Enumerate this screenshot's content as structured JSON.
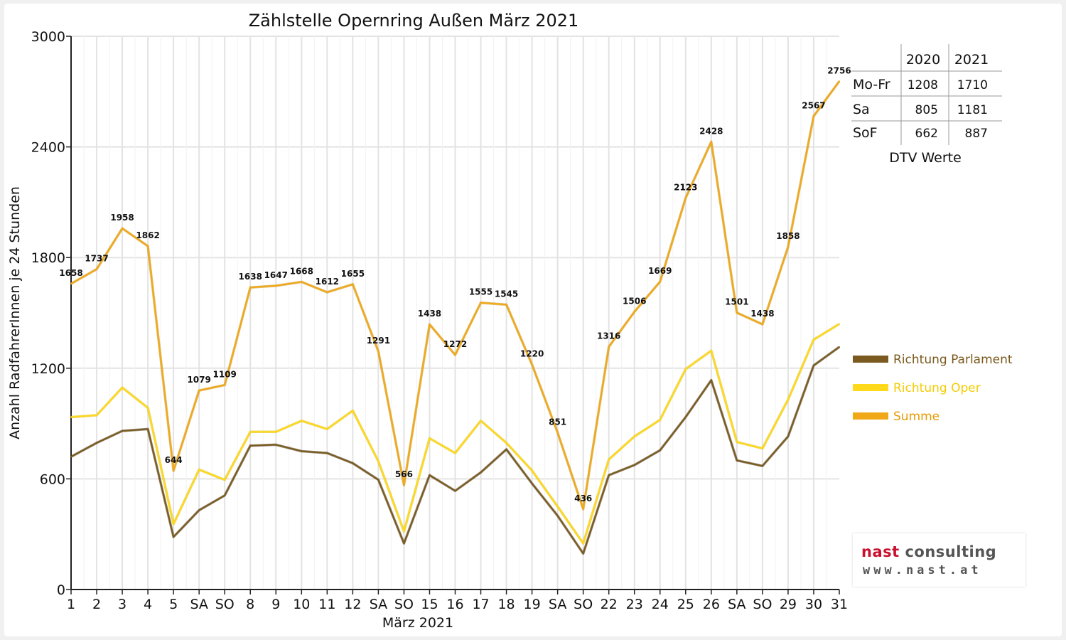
{
  "chart_data": {
    "type": "line",
    "title": "Zählstelle Opernring Außen März 2021",
    "xlabel": "März 2021",
    "ylabel": "Anzahl RadfahrerInnen je 24 Stunden",
    "ylim": [
      0,
      3000
    ],
    "yticks": [
      "0",
      "600",
      "1200",
      "1800",
      "2400",
      "3000"
    ],
    "grid": true,
    "legend_position": "right",
    "categories": [
      "1",
      "2",
      "3",
      "4",
      "5",
      "SA",
      "SO",
      "8",
      "9",
      "10",
      "11",
      "12",
      "SA",
      "SO",
      "15",
      "16",
      "17",
      "18",
      "19",
      "SA",
      "SO",
      "22",
      "23",
      "24",
      "25",
      "26",
      "SA",
      "SO",
      "29",
      "30",
      "31"
    ],
    "sunday_color": "#e00000",
    "series": [
      {
        "name": "Richtung Parlament",
        "color": "#7a5a1e",
        "values": [
          720,
          795,
          860,
          870,
          285,
          430,
          510,
          780,
          785,
          750,
          740,
          685,
          595,
          250,
          620,
          535,
          635,
          760,
          575,
          400,
          195,
          620,
          675,
          755,
          935,
          1135,
          700,
          670,
          830,
          1215,
          1315
        ]
      },
      {
        "name": "Richtung Oper",
        "color": "#ffd91a",
        "values": [
          935,
          945,
          1095,
          985,
          355,
          650,
          595,
          855,
          855,
          915,
          870,
          970,
          695,
          315,
          820,
          740,
          915,
          795,
          645,
          450,
          250,
          705,
          830,
          920,
          1195,
          1295,
          800,
          765,
          1030,
          1355,
          1440
        ]
      },
      {
        "name": "Summe",
        "color": "#f0a818",
        "values": [
          1658,
          1737,
          1958,
          1862,
          644,
          1079,
          1109,
          1638,
          1647,
          1668,
          1612,
          1655,
          1291,
          566,
          1438,
          1272,
          1555,
          1545,
          1220,
          851,
          436,
          1316,
          1506,
          1669,
          2123,
          2428,
          1501,
          1438,
          1858,
          2567,
          2756
        ]
      }
    ],
    "data_labels": [
      "1658",
      "1737",
      "1958",
      "1862",
      "644",
      "1079",
      "1109",
      "1638",
      "1647",
      "1668",
      "1612",
      "1655",
      "1291",
      "566",
      "1438",
      "1272",
      "1555",
      "1545",
      "1220",
      "851",
      "436",
      "1316",
      "1506",
      "1669",
      "2123",
      "2428",
      "1501",
      "1438",
      "1858",
      "2567",
      "2756"
    ]
  },
  "dtv_table": {
    "headers": [
      "2020",
      "2021"
    ],
    "rows": [
      {
        "label": "Mo-Fr",
        "v2020": "1208",
        "v2021": "1710"
      },
      {
        "label": "Sa",
        "v2020": "805",
        "v2021": "1181"
      },
      {
        "label": "SoF",
        "v2020": "662",
        "v2021": "887"
      }
    ],
    "caption": "DTV Werte"
  },
  "logo": {
    "line1_red": "nast",
    "line1_gray": "consulting",
    "line2": "www.nast.at"
  }
}
